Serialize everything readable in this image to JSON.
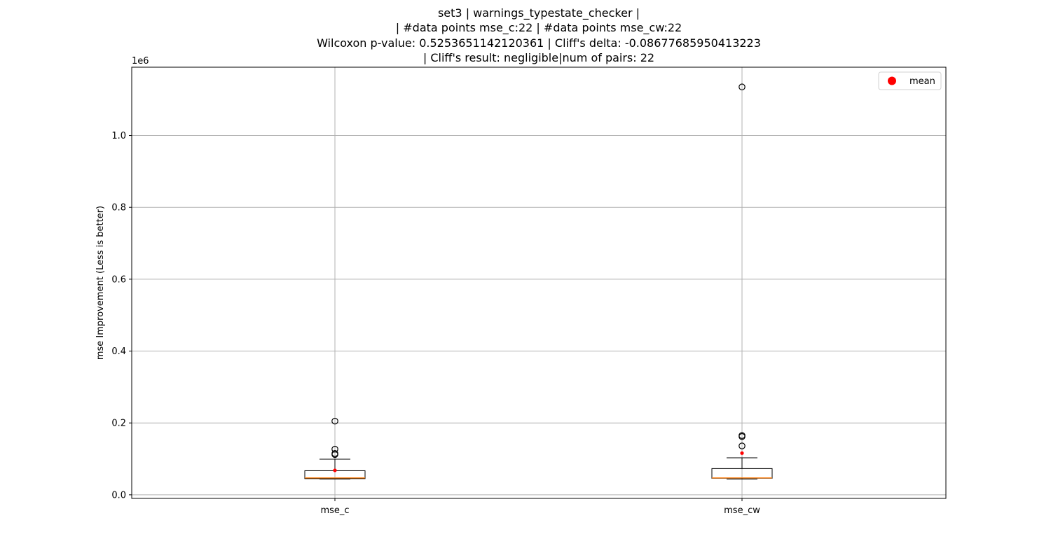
{
  "chart_data": {
    "type": "box",
    "title_lines": [
      "set3 | warnings_typestate_checker |",
      "| #data points mse_c:22 | #data points mse_cw:22",
      "Wilcoxon p-value: 0.5253651142120361 | Cliff's delta: -0.08677685950413223",
      "| Cliff's result: negligible|num of pairs: 22"
    ],
    "ylabel": "mse Improvement (Less is better)",
    "xlabel": "",
    "y_offset_label": "1e6",
    "ylim": [
      -0.01,
      1.19
    ],
    "yticks": [
      0.0,
      0.2,
      0.4,
      0.6,
      0.8,
      1.0
    ],
    "ytick_labels": [
      "0.0",
      "0.2",
      "0.4",
      "0.6",
      "0.8",
      "1.0"
    ],
    "grid": true,
    "legend": {
      "placement": "top-right",
      "entries": [
        {
          "label": "mean",
          "color": "#ff0000"
        }
      ]
    },
    "colors": {
      "median": "#ff7f0e",
      "mean": "#ff0000",
      "grid": "#b0b0b0",
      "box": "#000000"
    },
    "categories": [
      "mse_c",
      "mse_cw"
    ],
    "boxes": [
      {
        "name": "mse_c",
        "whisker_low": 0.044,
        "q1": 0.045,
        "median": 0.047,
        "q3": 0.067,
        "whisker_high": 0.099,
        "mean": 0.068,
        "outliers": [
          0.205,
          0.127,
          0.115,
          0.112
        ]
      },
      {
        "name": "mse_cw",
        "whisker_low": 0.044,
        "q1": 0.046,
        "median": 0.047,
        "q3": 0.073,
        "whisker_high": 0.103,
        "mean": 0.116,
        "outliers": [
          1.135,
          0.165,
          0.162,
          0.136
        ]
      }
    ]
  }
}
